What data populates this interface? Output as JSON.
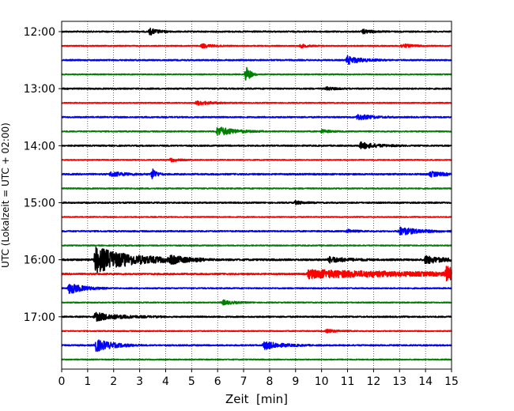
{
  "chart_data": {
    "type": "line",
    "title": "",
    "xlabel": "Zeit  [min]",
    "ylabel": "UTC (Lokalzeit = UTC + 02:00)",
    "xlim": [
      0,
      15
    ],
    "x_ticks": [
      "0",
      "1",
      "2",
      "3",
      "4",
      "5",
      "6",
      "7",
      "8",
      "9",
      "10",
      "11",
      "12",
      "13",
      "14",
      "15"
    ],
    "y_ticks": [
      {
        "label": "12:00",
        "trace": 0
      },
      {
        "label": "13:00",
        "trace": 4
      },
      {
        "label": "14:00",
        "trace": 8
      },
      {
        "label": "15:00",
        "trace": 12
      },
      {
        "label": "16:00",
        "trace": 16
      },
      {
        "label": "17:00",
        "trace": 20
      }
    ],
    "trace_interval_min": 15,
    "y_axis_inverted": true,
    "grid": {
      "x": true,
      "y": false,
      "style": "dotted"
    },
    "legend": "none",
    "colors": [
      "#000000",
      "#ff0000",
      "#0000ff",
      "#008000"
    ],
    "traces": [
      {
        "start": "12:00",
        "color": "#000000",
        "noise": 0.8,
        "events": [
          {
            "t": 3.4,
            "amp": 4,
            "dur": 0.3
          },
          {
            "t": 11.6,
            "amp": 2.5,
            "dur": 0.3
          }
        ]
      },
      {
        "start": "12:15",
        "color": "#ff0000",
        "noise": 0.6,
        "events": [
          {
            "t": 5.4,
            "amp": 2.5,
            "dur": 0.4
          },
          {
            "t": 9.2,
            "amp": 2,
            "dur": 0.3
          },
          {
            "t": 13.1,
            "amp": 2.5,
            "dur": 0.4
          }
        ]
      },
      {
        "start": "12:30",
        "color": "#0000ff",
        "noise": 0.8,
        "events": [
          {
            "t": 11.0,
            "amp": 5,
            "dur": 0.5
          }
        ]
      },
      {
        "start": "12:45",
        "color": "#008000",
        "noise": 0.6,
        "events": [
          {
            "t": 7.1,
            "amp": 11,
            "dur": 0.15
          }
        ]
      },
      {
        "start": "13:00",
        "color": "#000000",
        "noise": 0.8,
        "events": [
          {
            "t": 10.2,
            "amp": 2,
            "dur": 0.3
          }
        ]
      },
      {
        "start": "13:15",
        "color": "#ff0000",
        "noise": 0.6,
        "events": [
          {
            "t": 5.2,
            "amp": 2.5,
            "dur": 0.6
          }
        ]
      },
      {
        "start": "13:30",
        "color": "#0000ff",
        "noise": 0.8,
        "events": [
          {
            "t": 11.4,
            "amp": 3.5,
            "dur": 0.5
          }
        ]
      },
      {
        "start": "13:45",
        "color": "#008000",
        "noise": 0.7,
        "events": [
          {
            "t": 6.0,
            "amp": 6,
            "dur": 0.6
          },
          {
            "t": 10.0,
            "amp": 2,
            "dur": 0.3
          }
        ]
      },
      {
        "start": "14:00",
        "color": "#000000",
        "noise": 0.8,
        "events": [
          {
            "t": 11.5,
            "amp": 4,
            "dur": 0.6
          }
        ]
      },
      {
        "start": "14:15",
        "color": "#ff0000",
        "noise": 0.6,
        "events": [
          {
            "t": 4.2,
            "amp": 2,
            "dur": 0.3
          }
        ]
      },
      {
        "start": "14:30",
        "color": "#0000ff",
        "noise": 0.9,
        "events": [
          {
            "t": 1.9,
            "amp": 3,
            "dur": 0.5
          },
          {
            "t": 3.5,
            "amp": 7,
            "dur": 0.15
          },
          {
            "t": 14.2,
            "amp": 3,
            "dur": 0.5
          }
        ]
      },
      {
        "start": "14:45",
        "color": "#008000",
        "noise": 0.7,
        "events": []
      },
      {
        "start": "15:00",
        "color": "#000000",
        "noise": 0.8,
        "events": [
          {
            "t": 9.0,
            "amp": 2,
            "dur": 0.3
          }
        ]
      },
      {
        "start": "15:15",
        "color": "#ff0000",
        "noise": 0.6,
        "events": []
      },
      {
        "start": "15:30",
        "color": "#0000ff",
        "noise": 0.8,
        "events": [
          {
            "t": 13.0,
            "amp": 5,
            "dur": 0.7
          },
          {
            "t": 11.0,
            "amp": 2,
            "dur": 0.3
          }
        ]
      },
      {
        "start": "15:45",
        "color": "#008000",
        "noise": 0.6,
        "events": []
      },
      {
        "start": "16:00",
        "color": "#000000",
        "noise": 1.1,
        "events": [
          {
            "t": 1.3,
            "amp": 16,
            "dur": 1.4
          },
          {
            "t": 4.2,
            "amp": 3,
            "dur": 0.6
          },
          {
            "t": 10.3,
            "amp": 3.5,
            "dur": 0.6
          },
          {
            "t": 14.0,
            "amp": 5,
            "dur": 0.6
          }
        ]
      },
      {
        "start": "16:15",
        "color": "#ff0000",
        "noise": 1.0,
        "events": [
          {
            "t": 9.5,
            "amp": 5,
            "dur": 4.5
          },
          {
            "t": 14.8,
            "amp": 8,
            "dur": 0.5
          }
        ]
      },
      {
        "start": "16:30",
        "color": "#0000ff",
        "noise": 0.7,
        "events": [
          {
            "t": 0.3,
            "amp": 7,
            "dur": 0.5
          }
        ]
      },
      {
        "start": "16:45",
        "color": "#008000",
        "noise": 0.6,
        "events": [
          {
            "t": 6.2,
            "amp": 3,
            "dur": 0.4
          }
        ]
      },
      {
        "start": "17:00",
        "color": "#000000",
        "noise": 0.8,
        "events": [
          {
            "t": 1.3,
            "amp": 5,
            "dur": 0.9
          }
        ]
      },
      {
        "start": "17:15",
        "color": "#ff0000",
        "noise": 0.6,
        "events": [
          {
            "t": 10.2,
            "amp": 2,
            "dur": 0.4
          }
        ]
      },
      {
        "start": "17:30",
        "color": "#0000ff",
        "noise": 0.8,
        "events": [
          {
            "t": 1.3,
            "amp": 8,
            "dur": 0.6
          },
          {
            "t": 7.8,
            "amp": 5,
            "dur": 0.6
          }
        ]
      },
      {
        "start": "17:45",
        "color": "#008000",
        "noise": 0.6,
        "events": []
      }
    ]
  }
}
